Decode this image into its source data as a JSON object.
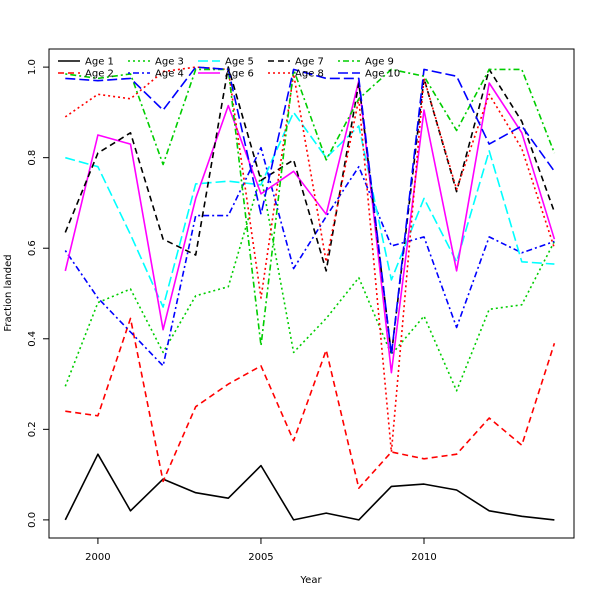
{
  "chart_data": {
    "type": "line",
    "title": "",
    "xlabel": "Year",
    "ylabel": "Fraction landed",
    "x": [
      1999,
      2000,
      2001,
      2002,
      2003,
      2004,
      2005,
      2006,
      2007,
      2008,
      2009,
      2010,
      2011,
      2012,
      2013,
      2014
    ],
    "xlim": [
      1998.5,
      2014.6
    ],
    "ylim": [
      -0.04,
      1.04
    ],
    "xticks": [
      2000,
      2005,
      2010
    ],
    "yticks": [
      0.0,
      0.2,
      0.4,
      0.6,
      0.8,
      1.0
    ],
    "xtick_labels": [
      "2000",
      "2005",
      "2010"
    ],
    "ytick_labels": [
      "0.0",
      "0.2",
      "0.4",
      "0.6",
      "0.8",
      "1.0"
    ],
    "grid": false,
    "legend_position": "top-left",
    "series": [
      {
        "name": "Age 1",
        "color": "#000000",
        "dash": "solid",
        "values": [
          0.0,
          0.145,
          0.02,
          0.09,
          0.06,
          0.048,
          0.12,
          0.0,
          0.015,
          0.0,
          0.074,
          0.079,
          0.066,
          0.02,
          0.008,
          0.0
        ]
      },
      {
        "name": "Age 2",
        "color": "#ff0000",
        "dash": "dashed",
        "values": [
          0.24,
          0.23,
          0.445,
          0.085,
          0.25,
          0.3,
          0.34,
          0.175,
          0.375,
          0.07,
          0.15,
          0.135,
          0.145,
          0.225,
          0.165,
          0.39
        ]
      },
      {
        "name": "Age 3",
        "color": "#00cd00",
        "dash": "dotted",
        "values": [
          0.295,
          0.48,
          0.51,
          0.37,
          0.495,
          0.515,
          0.76,
          0.37,
          0.445,
          0.535,
          0.365,
          0.45,
          0.285,
          0.465,
          0.475,
          0.615
        ]
      },
      {
        "name": "Age 4",
        "color": "#0000ff",
        "dash": "dotdash",
        "values": [
          0.595,
          0.49,
          0.415,
          0.34,
          0.672,
          0.672,
          0.822,
          0.555,
          0.67,
          0.78,
          0.605,
          0.625,
          0.425,
          0.625,
          0.59,
          0.615
        ]
      },
      {
        "name": "Age 5",
        "color": "#00ffff",
        "dash": "longdash",
        "values": [
          0.8,
          0.78,
          0.63,
          0.47,
          0.742,
          0.748,
          0.74,
          0.9,
          0.8,
          0.87,
          0.53,
          0.71,
          0.57,
          0.815,
          0.57,
          0.565
        ]
      },
      {
        "name": "Age 6",
        "color": "#ff00ff",
        "dash": "solid",
        "values": [
          0.55,
          0.85,
          0.83,
          0.42,
          0.71,
          0.915,
          0.72,
          0.77,
          0.675,
          0.97,
          0.325,
          0.905,
          0.55,
          0.965,
          0.855,
          0.62
        ]
      },
      {
        "name": "Age 7",
        "color": "#000000",
        "dash": "dashed",
        "values": [
          0.635,
          0.81,
          0.855,
          0.62,
          0.585,
          1.0,
          0.75,
          0.795,
          0.55,
          0.965,
          0.365,
          0.975,
          0.725,
          0.995,
          0.88,
          0.68
        ]
      },
      {
        "name": "Age 8",
        "color": "#ff0000",
        "dash": "dotted",
        "values": [
          0.89,
          0.94,
          0.93,
          0.99,
          1.0,
          0.995,
          0.49,
          0.985,
          0.57,
          0.93,
          0.15,
          0.975,
          0.73,
          0.94,
          0.82,
          0.6
        ]
      },
      {
        "name": "Age 9",
        "color": "#00cd00",
        "dash": "dotdash",
        "values": [
          0.985,
          0.975,
          0.985,
          0.785,
          0.995,
          0.995,
          0.385,
          0.995,
          0.795,
          0.93,
          0.995,
          0.98,
          0.86,
          0.995,
          0.995,
          0.81
        ]
      },
      {
        "name": "Age 10",
        "color": "#0000ff",
        "dash": "longdash",
        "values": [
          0.975,
          0.97,
          0.975,
          0.905,
          1.0,
          0.995,
          0.675,
          0.995,
          0.975,
          0.975,
          0.365,
          0.995,
          0.98,
          0.83,
          0.87,
          0.77
        ]
      }
    ]
  }
}
